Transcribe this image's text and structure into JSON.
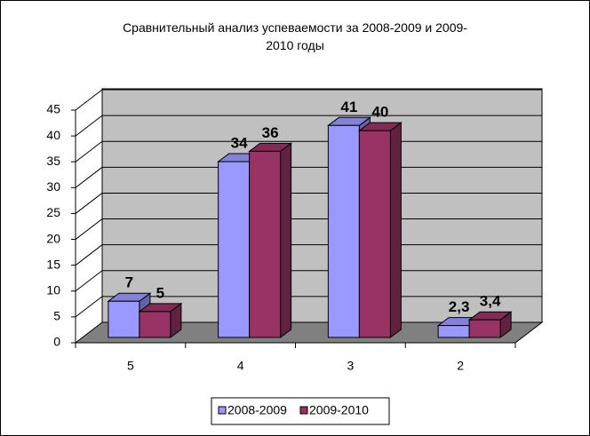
{
  "chart_data": {
    "type": "bar3d",
    "title": "Сравнительный анализ успеваемости за 2008-2009 и 2009-2010 годы",
    "categories": [
      "5",
      "4",
      "3",
      "2"
    ],
    "series": [
      {
        "name": "2008-2009",
        "color": "#9999ff",
        "values": [
          7,
          34,
          41,
          2.3
        ],
        "value_labels": [
          "7",
          "34",
          "41",
          "2,3"
        ]
      },
      {
        "name": "2009-2010",
        "color": "#993366",
        "values": [
          5,
          36,
          40,
          3.4
        ],
        "value_labels": [
          "5",
          "36",
          "40",
          "3,4"
        ]
      }
    ],
    "ylim": [
      0,
      45
    ],
    "yticks": [
      0,
      5,
      10,
      15,
      20,
      25,
      30,
      35,
      40,
      45
    ],
    "grid": true,
    "legend": "bottom"
  }
}
